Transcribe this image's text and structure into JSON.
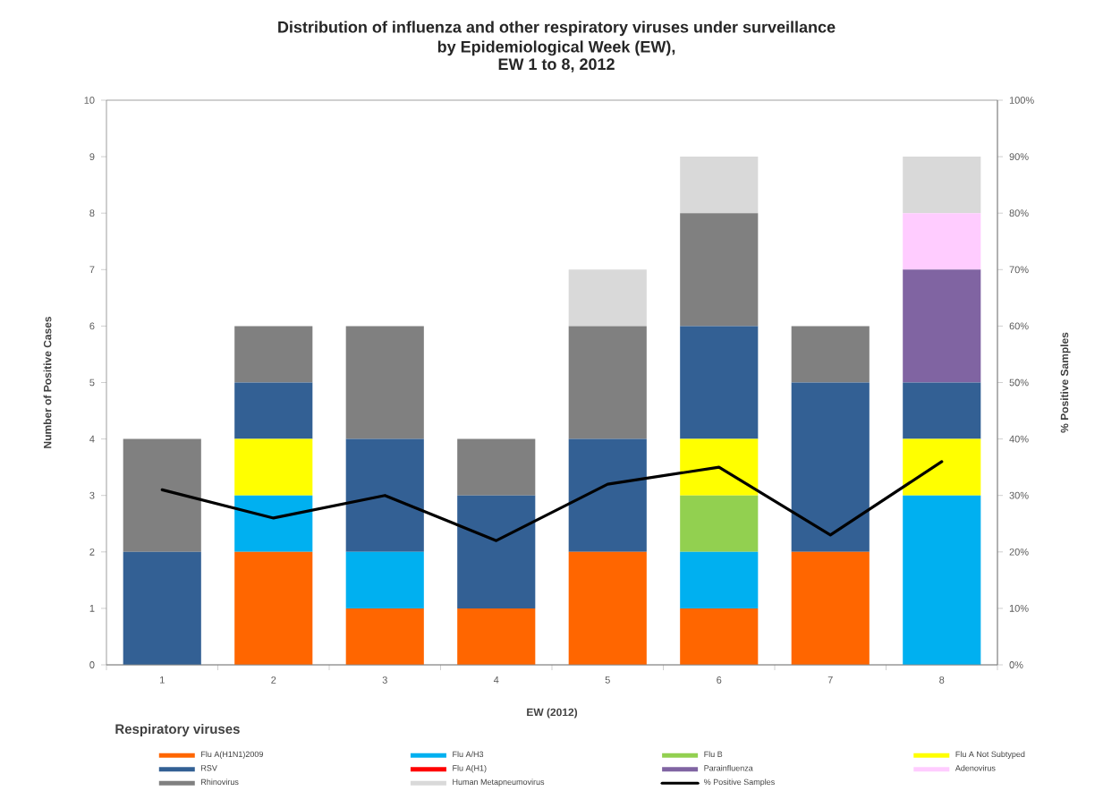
{
  "chart_data": {
    "type": "bar",
    "stacked": true,
    "title": "Distribution of influenza and other respiratory viruses under surveillance by Epidemiological Week (EW),",
    "subtitle": "EW 1 to 8, 2012",
    "xlabel": "EW (2012)",
    "ylabel": "Number of Positive Cases",
    "y2label": "% Positive Samples",
    "legend_title": "Respiratory viruses",
    "categories": [
      "1",
      "2",
      "3",
      "4",
      "5",
      "6",
      "7",
      "8"
    ],
    "series": [
      {
        "name": "Flu A(H1N1)2009",
        "color": "#ff6600",
        "values": [
          0,
          2,
          1,
          1,
          2,
          1,
          2,
          0
        ]
      },
      {
        "name": "Flu A/H3",
        "color": "#00b0f0",
        "values": [
          0,
          1,
          1,
          0,
          0,
          1,
          0,
          3
        ]
      },
      {
        "name": "Flu B",
        "color": "#92d050",
        "values": [
          0,
          0,
          0,
          0,
          0,
          1,
          0,
          0
        ]
      },
      {
        "name": "Flu A Not Subtyped",
        "color": "#ffff00",
        "values": [
          0,
          1,
          0,
          0,
          0,
          1,
          0,
          1
        ]
      },
      {
        "name": "RSV",
        "color": "#336094",
        "values": [
          2,
          1,
          2,
          2,
          2,
          2,
          3,
          1
        ]
      },
      {
        "name": "Flu A(H1)",
        "color": "#ff0000",
        "values": [
          0,
          0,
          0,
          0,
          0,
          0,
          0,
          0
        ]
      },
      {
        "name": "Parainfluenza",
        "color": "#8064a2",
        "values": [
          0,
          0,
          0,
          0,
          0,
          0,
          0,
          2
        ]
      },
      {
        "name": "Adenovirus",
        "color": "#ffccff",
        "values": [
          0,
          0,
          0,
          0,
          0,
          0,
          0,
          1
        ]
      },
      {
        "name": "Rhinovirus",
        "color": "#808080",
        "values": [
          2,
          1,
          2,
          1,
          2,
          2,
          1,
          0
        ]
      },
      {
        "name": "Human Metapneumovirus",
        "color": "#d9d9d9",
        "values": [
          0,
          0,
          0,
          0,
          1,
          1,
          0,
          1
        ]
      },
      {
        "name": "% Positive Samples",
        "type": "line",
        "axis": "y2",
        "color": "#000000",
        "values": [
          31,
          26,
          30,
          22,
          32,
          35,
          23,
          36
        ]
      }
    ],
    "ylim": [
      0,
      10
    ],
    "yticks": [
      0,
      1,
      2,
      3,
      4,
      5,
      6,
      7,
      8,
      9,
      10
    ],
    "y2lim": [
      0,
      100
    ],
    "y2ticks": [
      {
        "value": 0,
        "label": "0%"
      },
      {
        "value": 10,
        "label": "10%"
      },
      {
        "value": 20,
        "label": "20%"
      },
      {
        "value": 30,
        "label": "30%"
      },
      {
        "value": 40,
        "label": "40%"
      },
      {
        "value": 50,
        "label": "50%"
      },
      {
        "value": 60,
        "label": "60%"
      },
      {
        "value": 70,
        "label": "70%"
      },
      {
        "value": 80,
        "label": "80%"
      },
      {
        "value": 90,
        "label": "90%"
      },
      {
        "value": 100,
        "label": "100%"
      }
    ],
    "legend": "bottom"
  }
}
